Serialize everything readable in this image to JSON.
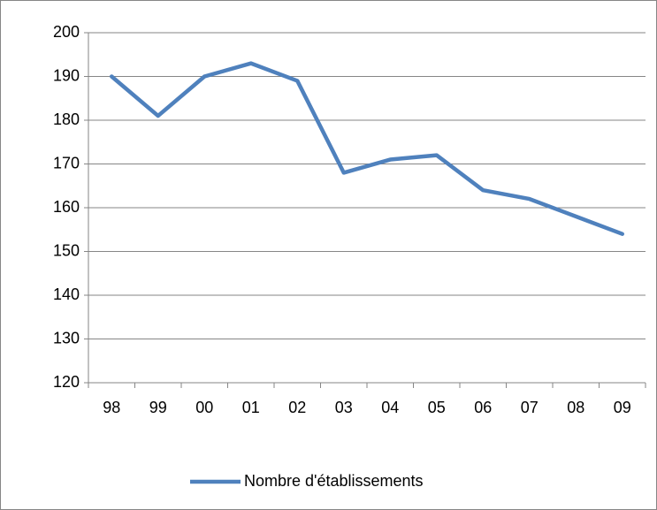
{
  "chart_data": {
    "type": "line",
    "categories": [
      "98",
      "99",
      "00",
      "01",
      "02",
      "03",
      "04",
      "05",
      "06",
      "07",
      "08",
      "09"
    ],
    "series": [
      {
        "name": "Nombre d'établissements",
        "color": "#4f81bd",
        "values": [
          190,
          181,
          190,
          193,
          189,
          168,
          171,
          172,
          164,
          162,
          158,
          154
        ]
      }
    ],
    "ylim": [
      120,
      200
    ],
    "yticks": [
      120,
      130,
      140,
      150,
      160,
      170,
      180,
      190,
      200
    ],
    "grid": true,
    "legend": "bottom"
  }
}
